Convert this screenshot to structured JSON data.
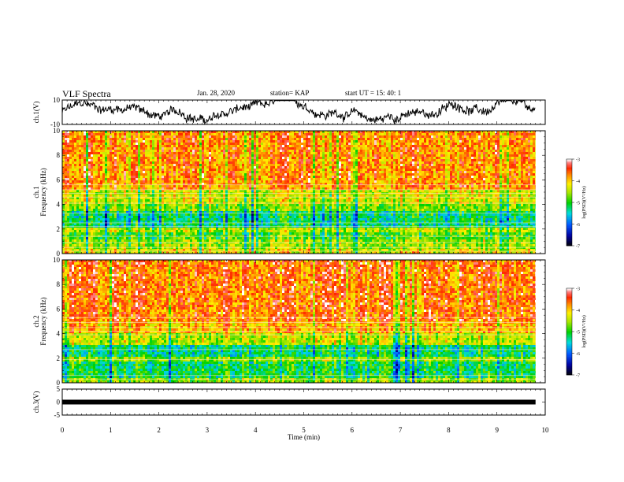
{
  "header": {
    "title": "VLF Spectra",
    "date": "Jan. 28, 2020",
    "station": "station= KAP",
    "start": "start  UT =   15: 40: 1"
  },
  "chart_data": [
    {
      "type": "line",
      "ylabel": "ch.1(V)",
      "y_ticks": [
        "10",
        "-10"
      ],
      "ylim": [
        -10,
        10
      ],
      "description_values": "noisy waveform mostly between -8 and 8 V"
    },
    {
      "type": "heatmap",
      "ylabel": "ch.1\nFrequency (kHz)",
      "y_ticks": [
        "0",
        "2",
        "4",
        "6",
        "8",
        "10"
      ],
      "ylim": [
        0,
        10
      ],
      "colorbar": {
        "label": "log(PSD)(V²/Hz)",
        "ticks": [
          "-3",
          "-4",
          "-5",
          "-6",
          "-7"
        ],
        "range": [
          -7,
          -3
        ]
      }
    },
    {
      "type": "heatmap",
      "ylabel": "ch.2\nFrequency (kHz)",
      "y_ticks": [
        "0",
        "2",
        "4",
        "6",
        "8",
        "10"
      ],
      "ylim": [
        0,
        10
      ],
      "colorbar": {
        "label": "log(PSD)(V²/Hz)",
        "ticks": [
          "-3",
          "-4",
          "-5",
          "-6",
          "-7"
        ],
        "range": [
          -7,
          -3
        ]
      }
    },
    {
      "type": "line",
      "ylabel": "ch.3(V)",
      "y_ticks": [
        "5",
        "0",
        "-5"
      ],
      "ylim": [
        -5,
        5
      ],
      "values_constant": 0
    }
  ],
  "x_axis": {
    "label": "Time (min)",
    "ticks": [
      "0",
      "1",
      "2",
      "3",
      "4",
      "5",
      "6",
      "7",
      "8",
      "9",
      "10"
    ],
    "xlim": [
      0,
      10
    ],
    "data_end": 9.8
  }
}
